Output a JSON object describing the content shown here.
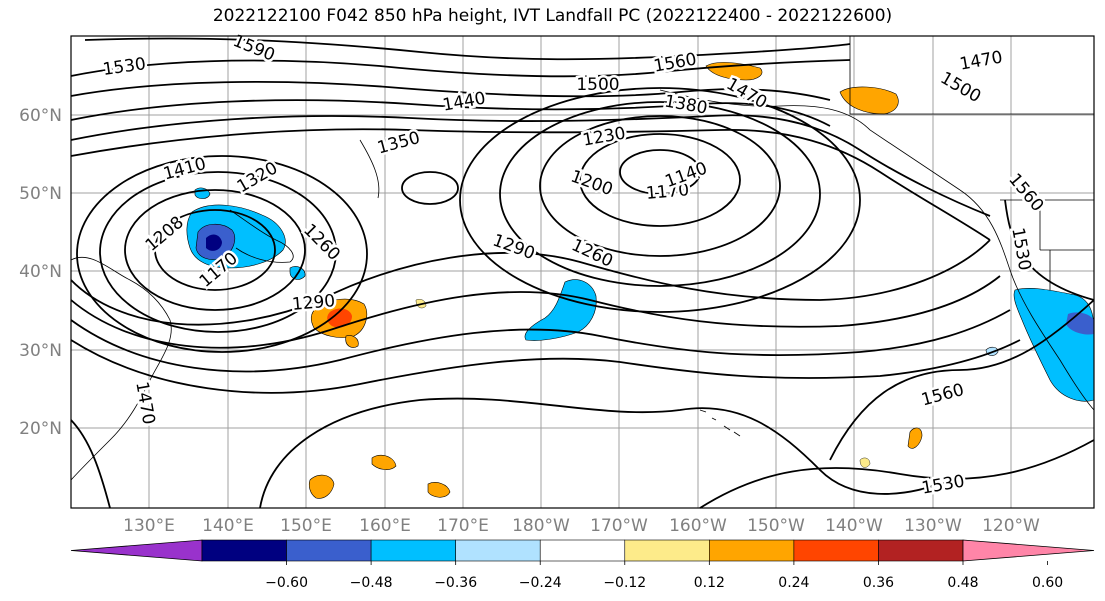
{
  "title": "2022122100 F042 850 hPa height, IVT Landfall PC (2022122400 - 2022122600)",
  "lat_labels": [
    "60°N",
    "50°N",
    "40°N",
    "30°N",
    "20°N"
  ],
  "lon_labels": [
    "130°E",
    "140°E",
    "150°E",
    "160°E",
    "170°E",
    "180°W",
    "170°W",
    "160°W",
    "150°W",
    "140°W",
    "130°W",
    "120°W"
  ],
  "contour_labels": [
    "1530",
    "1590",
    "1560",
    "1500",
    "1470",
    "1440",
    "1380",
    "1470",
    "1500",
    "1410",
    "1320",
    "1350",
    "1230",
    "1200",
    "1170",
    "1140",
    "1208",
    "1260",
    "1170",
    "1290",
    "1260",
    "1290",
    "1560",
    "1530",
    "1530",
    "1560",
    "1470"
  ],
  "colorbar": {
    "tick_labels": [
      "−0.60",
      "−0.48",
      "−0.36",
      "−0.24",
      "−0.12",
      "0.12",
      "0.24",
      "0.36",
      "0.48",
      "0.60"
    ],
    "colors": [
      "#9932cc",
      "#000080",
      "#3a5fcd",
      "#00bfff",
      "#b0e2ff",
      "#ffffff",
      "#fdeb8a",
      "#ffa500",
      "#ff4500",
      "#b22222",
      "#ff85a8"
    ]
  },
  "fill_colors": {
    "deep_blue": "#3a5fcd",
    "light_blue": "#00bfff",
    "navy": "#000080",
    "orange": "#ffa500",
    "red_orange": "#ff4500",
    "yellow": "#fdeb8a"
  }
}
